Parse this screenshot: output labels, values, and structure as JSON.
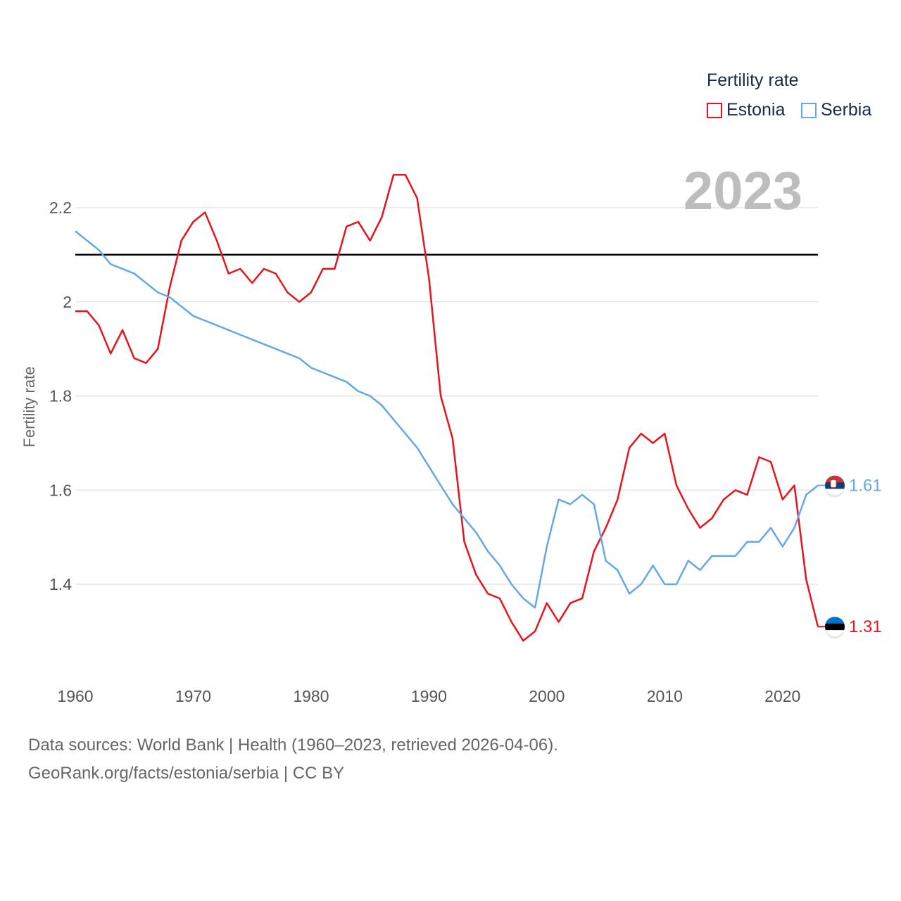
{
  "legend": {
    "title": "Fertility rate",
    "items": [
      {
        "name": "Estonia",
        "color": "#e8131d"
      },
      {
        "name": "Serbia",
        "color": "#64a8e8"
      }
    ]
  },
  "year_stamp": "2023",
  "footer": {
    "line1": "Data sources: World Bank | Health (1960–2023, retrieved 2026-04-06).",
    "line2": "GeoRank.org/facts/estonia/serbia | CC BY"
  },
  "chart_data": {
    "type": "line",
    "title": "",
    "xlabel": "",
    "ylabel": "Fertility rate",
    "xlim": [
      1960,
      2023
    ],
    "ylim": [
      1.25,
      2.3
    ],
    "x_ticks": [
      1960,
      1970,
      1980,
      1990,
      2000,
      2010,
      2020
    ],
    "y_ticks": [
      1.4,
      1.6,
      1.8,
      2.0,
      2.2
    ],
    "y_tick_labels": [
      "1.4",
      "1.6",
      "1.8",
      "2",
      "2.2"
    ],
    "reference_line": {
      "y": 2.1,
      "color": "#000000"
    },
    "x": [
      1960,
      1961,
      1962,
      1963,
      1964,
      1965,
      1966,
      1967,
      1968,
      1969,
      1970,
      1971,
      1972,
      1973,
      1974,
      1975,
      1976,
      1977,
      1978,
      1979,
      1980,
      1981,
      1982,
      1983,
      1984,
      1985,
      1986,
      1987,
      1988,
      1989,
      1990,
      1991,
      1992,
      1993,
      1994,
      1995,
      1996,
      1997,
      1998,
      1999,
      2000,
      2001,
      2002,
      2003,
      2004,
      2005,
      2006,
      2007,
      2008,
      2009,
      2010,
      2011,
      2012,
      2013,
      2014,
      2015,
      2016,
      2017,
      2018,
      2019,
      2020,
      2021,
      2022,
      2023
    ],
    "series": [
      {
        "name": "Estonia",
        "color": "#e8131d",
        "end_label": "1.31",
        "values": [
          1.98,
          1.98,
          1.95,
          1.89,
          1.94,
          1.88,
          1.87,
          1.9,
          2.03,
          2.13,
          2.17,
          2.19,
          2.13,
          2.06,
          2.07,
          2.04,
          2.07,
          2.06,
          2.02,
          2.0,
          2.02,
          2.07,
          2.07,
          2.16,
          2.17,
          2.13,
          2.18,
          2.27,
          2.27,
          2.22,
          2.05,
          1.8,
          1.71,
          1.49,
          1.42,
          1.38,
          1.37,
          1.32,
          1.28,
          1.3,
          1.36,
          1.32,
          1.36,
          1.37,
          1.47,
          1.52,
          1.58,
          1.69,
          1.72,
          1.7,
          1.72,
          1.61,
          1.56,
          1.52,
          1.54,
          1.58,
          1.6,
          1.59,
          1.67,
          1.66,
          1.58,
          1.61,
          1.41,
          1.31
        ]
      },
      {
        "name": "Serbia",
        "color": "#64a8e8",
        "end_label": "1.61",
        "values": [
          2.15,
          2.13,
          2.11,
          2.08,
          2.07,
          2.06,
          2.04,
          2.02,
          2.01,
          1.99,
          1.97,
          1.96,
          1.95,
          1.94,
          1.93,
          1.92,
          1.91,
          1.9,
          1.89,
          1.88,
          1.86,
          1.85,
          1.84,
          1.83,
          1.81,
          1.8,
          1.78,
          1.75,
          1.72,
          1.69,
          1.65,
          1.61,
          1.57,
          1.54,
          1.51,
          1.47,
          1.44,
          1.4,
          1.37,
          1.35,
          1.48,
          1.58,
          1.57,
          1.59,
          1.57,
          1.45,
          1.43,
          1.38,
          1.4,
          1.44,
          1.4,
          1.4,
          1.45,
          1.43,
          1.46,
          1.46,
          1.46,
          1.49,
          1.49,
          1.52,
          1.48,
          1.52,
          1.59,
          1.61
        ]
      }
    ]
  }
}
